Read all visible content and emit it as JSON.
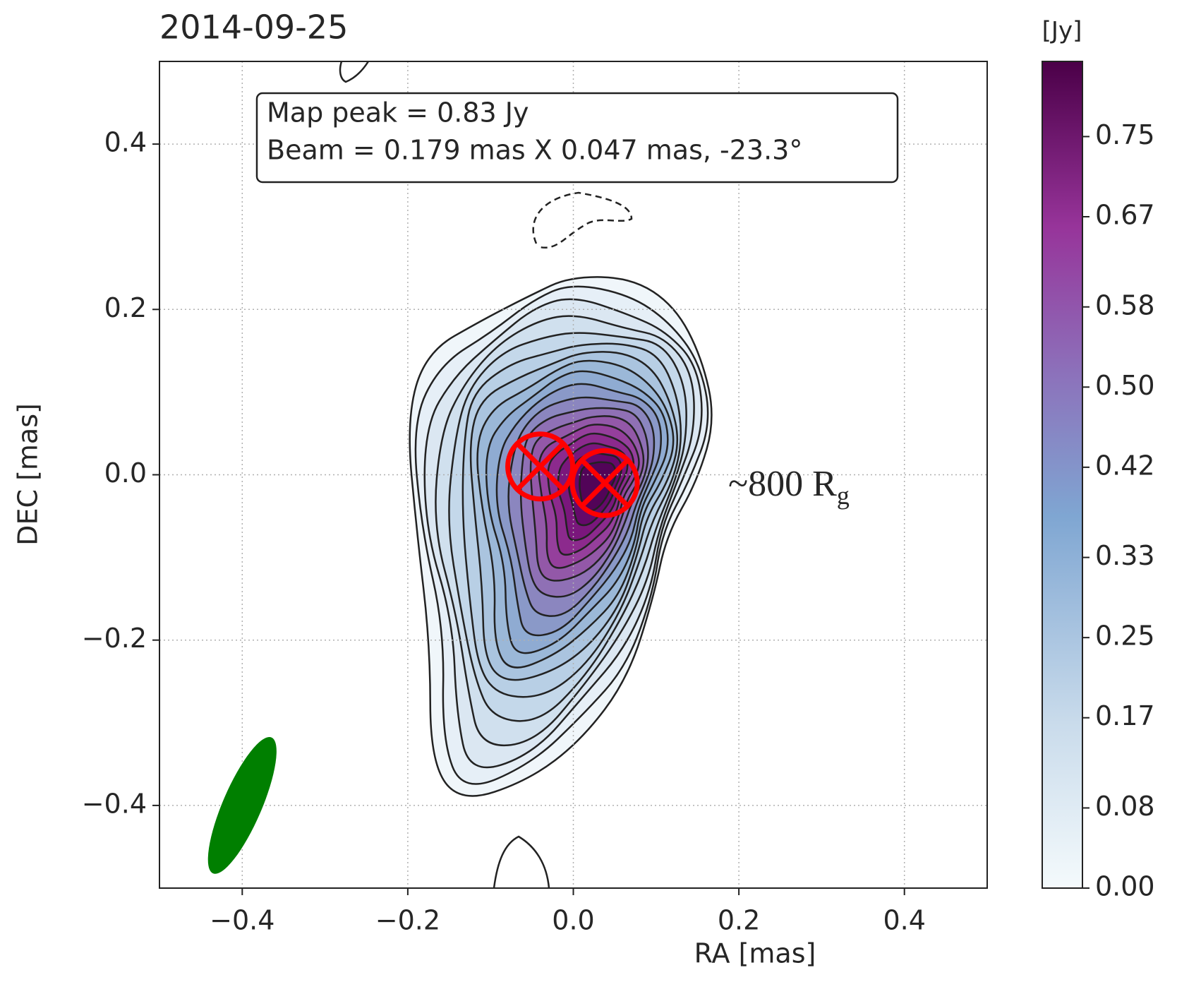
{
  "chart_data": {
    "type": "contour",
    "title": "2014-09-25",
    "x_label": "RA [mas]",
    "y_label": "DEC [mas]",
    "xlim": [
      -0.5,
      0.5
    ],
    "ylim": [
      -0.5,
      0.5
    ],
    "xticks": [
      {
        "value": -0.4,
        "label": "−0.4"
      },
      {
        "value": -0.2,
        "label": "−0.2"
      },
      {
        "value": 0,
        "label": "0.0"
      },
      0.2,
      0.4
    ],
    "yticks": [
      {
        "value": -0.4,
        "label": "−0.4"
      },
      {
        "value": -0.2,
        "label": "−0.2"
      },
      {
        "value": 0,
        "label": "0.0"
      },
      0.2,
      0.4
    ],
    "grid": true,
    "annotation_box": [
      "Map peak = 0.83 Jy",
      "Beam = 0.179 mas X 0.047 mas, -23.3°"
    ],
    "scale_label": {
      "text": "~800 R",
      "subscript": "g"
    },
    "beam": {
      "x": -0.4,
      "y": -0.4,
      "major": 0.179,
      "minor": 0.047,
      "pa": -23.3,
      "color": "#007f00"
    },
    "markers": {
      "x": [
        -0.04,
        0.038
      ],
      "y": [
        0.01,
        -0.01
      ],
      "color": "#ff0000"
    },
    "colorbar": {
      "label": "[Jy]",
      "clim": [
        0,
        0.825
      ],
      "ticks": [
        {
          "value": 0,
          "label": "0.00"
        },
        {
          "value": 0.08,
          "label": "0.08"
        },
        {
          "value": 0.17,
          "label": "0.17"
        },
        {
          "value": 0.25,
          "label": "0.25"
        },
        {
          "value": 0.33,
          "label": "0.33"
        },
        {
          "value": 0.42,
          "label": "0.42"
        },
        {
          "value": 0.5,
          "label": "0.50"
        },
        {
          "value": 0.58,
          "label": "0.58"
        },
        {
          "value": 0.67,
          "label": "0.67"
        },
        {
          "value": 0.75,
          "label": "0.75"
        }
      ]
    }
  }
}
